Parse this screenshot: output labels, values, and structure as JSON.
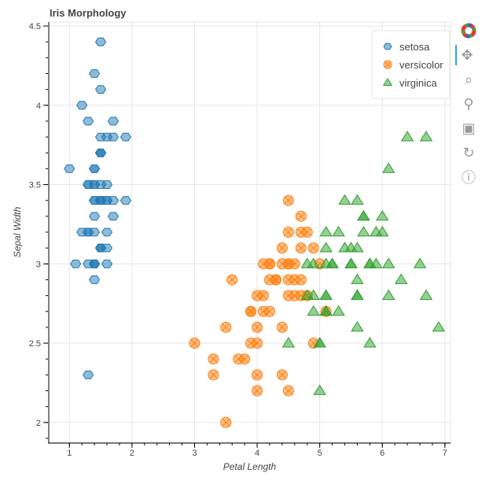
{
  "chart_data": {
    "type": "scatter",
    "title": "Iris Morphology",
    "xlabel": "Petal Length",
    "ylabel": "Sepal Width",
    "xlim": [
      0.67,
      7.09
    ],
    "ylim": [
      1.875,
      4.525
    ],
    "xticks": [
      "1",
      "2",
      "3",
      "4",
      "5",
      "6",
      "7"
    ],
    "yticks": [
      "2",
      "2.5",
      "3",
      "3.5",
      "4",
      "4.5"
    ],
    "grid": true,
    "legend_position": "top-right",
    "series": [
      {
        "name": "setosa",
        "marker": "hex",
        "color": "#1f77b4",
        "x": [
          1.4,
          1.4,
          1.3,
          1.5,
          1.4,
          1.7,
          1.4,
          1.5,
          1.4,
          1.5,
          1.5,
          1.6,
          1.4,
          1.1,
          1.2,
          1.5,
          1.3,
          1.4,
          1.7,
          1.5,
          1.7,
          1.5,
          1.0,
          1.7,
          1.9,
          1.6,
          1.6,
          1.5,
          1.4,
          1.6,
          1.6,
          1.5,
          1.5,
          1.4,
          1.5,
          1.2,
          1.3,
          1.4,
          1.3,
          1.5,
          1.3,
          1.3,
          1.3,
          1.6,
          1.9,
          1.4,
          1.6,
          1.4,
          1.5,
          1.4
        ],
        "y": [
          3.5,
          3.0,
          3.2,
          3.1,
          3.6,
          3.9,
          3.4,
          3.4,
          2.9,
          3.1,
          3.7,
          3.4,
          3.0,
          3.0,
          4.0,
          4.4,
          3.9,
          3.5,
          3.8,
          3.8,
          3.4,
          3.7,
          3.6,
          3.3,
          3.4,
          3.0,
          3.4,
          3.5,
          3.4,
          3.2,
          3.1,
          3.4,
          4.1,
          4.2,
          3.1,
          3.2,
          3.5,
          3.6,
          3.0,
          3.4,
          3.5,
          2.3,
          3.2,
          3.5,
          3.8,
          3.0,
          3.8,
          3.2,
          3.7,
          3.3
        ]
      },
      {
        "name": "versicolor",
        "marker": "circle_x",
        "color": "#ff7f0e",
        "x": [
          4.7,
          4.5,
          4.9,
          4.0,
          4.6,
          4.5,
          4.7,
          3.3,
          4.6,
          3.9,
          3.5,
          4.2,
          4.0,
          4.7,
          3.6,
          4.4,
          4.5,
          4.1,
          4.5,
          3.9,
          4.8,
          4.0,
          4.9,
          4.7,
          4.3,
          4.4,
          4.8,
          5.0,
          4.5,
          3.5,
          3.8,
          3.7,
          3.9,
          5.1,
          4.5,
          4.5,
          4.7,
          4.4,
          4.1,
          4.0,
          4.4,
          4.6,
          4.0,
          3.3,
          4.2,
          4.2,
          4.2,
          4.3,
          3.0,
          4.1
        ],
        "y": [
          3.2,
          3.2,
          3.1,
          2.3,
          2.8,
          2.8,
          3.3,
          2.4,
          2.9,
          2.7,
          2.0,
          3.0,
          2.2,
          2.9,
          2.9,
          3.1,
          3.0,
          2.7,
          2.2,
          2.5,
          3.2,
          2.8,
          2.5,
          2.8,
          2.9,
          3.0,
          2.8,
          3.0,
          2.9,
          2.6,
          2.4,
          2.4,
          2.7,
          2.7,
          3.0,
          3.4,
          3.1,
          2.3,
          3.0,
          2.5,
          2.6,
          3.0,
          2.6,
          2.3,
          2.7,
          3.0,
          2.9,
          2.9,
          2.5,
          2.8
        ]
      },
      {
        "name": "virginica",
        "marker": "triangle",
        "color": "#2ca02c",
        "x": [
          6.0,
          5.1,
          5.9,
          5.6,
          5.8,
          6.6,
          4.5,
          6.3,
          5.8,
          6.1,
          5.1,
          5.3,
          5.5,
          5.0,
          5.1,
          5.3,
          5.5,
          6.7,
          6.9,
          5.0,
          5.7,
          4.9,
          6.7,
          4.9,
          5.7,
          6.0,
          4.8,
          4.9,
          5.6,
          5.8,
          6.1,
          6.4,
          5.6,
          5.1,
          5.6,
          6.1,
          5.6,
          5.5,
          4.8,
          5.4,
          5.6,
          5.1,
          5.1,
          5.9,
          5.7,
          5.2,
          5.0,
          5.2,
          5.4,
          5.1
        ],
        "y": [
          3.3,
          2.7,
          3.0,
          2.9,
          3.0,
          3.0,
          2.5,
          2.9,
          2.5,
          3.6,
          3.2,
          2.7,
          3.0,
          2.5,
          2.8,
          3.2,
          3.0,
          3.8,
          2.6,
          2.2,
          3.2,
          2.8,
          2.8,
          2.7,
          3.3,
          3.2,
          2.8,
          3.0,
          2.8,
          3.0,
          2.8,
          3.8,
          2.8,
          2.8,
          2.6,
          3.0,
          3.4,
          3.1,
          3.0,
          3.1,
          3.1,
          3.1,
          2.7,
          3.2,
          3.3,
          3.0,
          2.5,
          3.0,
          3.4,
          3.0
        ]
      }
    ]
  },
  "toolbar": {
    "icons": [
      "bokeh-logo-icon",
      "pan-icon",
      "box-zoom-icon",
      "wheel-zoom-icon",
      "save-icon",
      "reset-icon",
      "help-icon"
    ],
    "active": "pan-icon"
  }
}
